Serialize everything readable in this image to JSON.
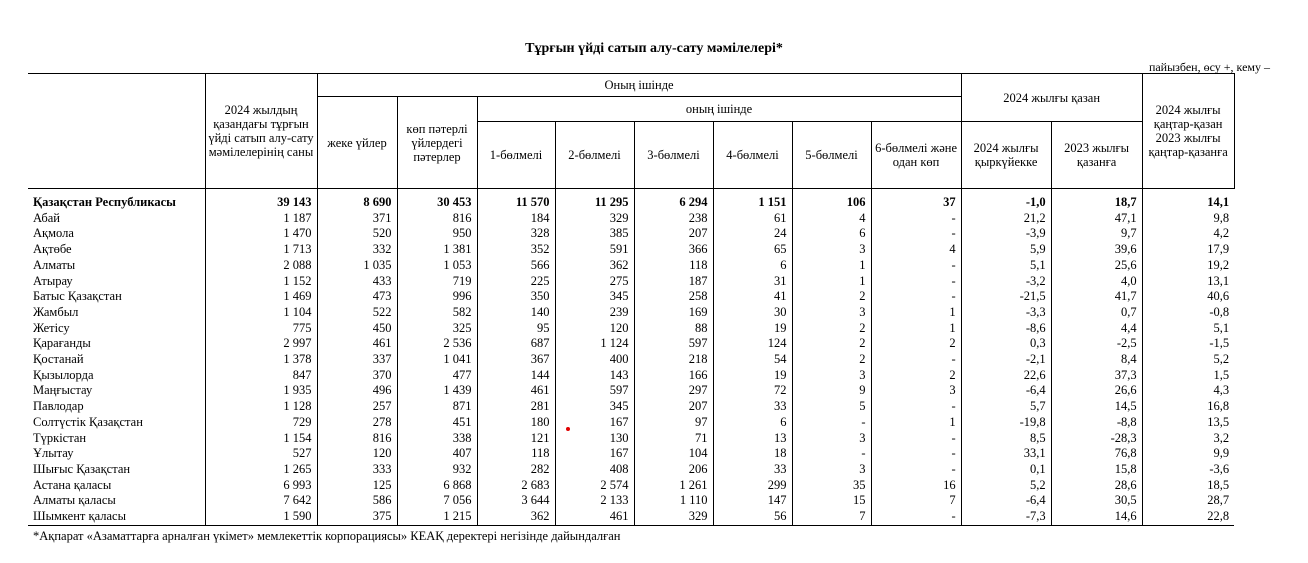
{
  "title": "Тұрғын үйді сатып алу-сату мәмілелері*",
  "units": "пайызбен, өсу +, кему –",
  "headers": {
    "col_total": "2024 жылдың қазандағы тұрғын үйді сатып алу-сату мәмілелерінің саны",
    "of_which": "Оның ішінде",
    "of_which_lower": "оның ішінде",
    "houses": "жеке үйлер",
    "apartments": "көп пәтерлі үйлердегі пәтерлер",
    "r1": "1-бөлмелі",
    "r2": "2-бөлмелі",
    "r3": "3-бөлмелі",
    "r4": "4-бөлмелі",
    "r5": "5-бөлмелі",
    "r6": "6-бөлмелі және одан көп",
    "oct_group": "2024 жылғы қазан",
    "vs_sep": "2024 жылғы қыркүйекке",
    "vs_oct": "2023 жылғы қазанға",
    "ytd": "2024 жылғы қаңтар-қазан 2023 жылғы қаңтар-қазанға"
  },
  "rows": [
    {
      "name": "Қазақстан Республикасы",
      "total": "39 143",
      "houses": "8 690",
      "apts": "30 453",
      "r1": "11 570",
      "r2": "11 295",
      "r3": "6 294",
      "r4": "1 151",
      "r5": "106",
      "r6": "37",
      "sep": "-1,0",
      "oct": "18,7",
      "ytd": "14,1"
    },
    {
      "name": "Абай",
      "total": "1 187",
      "houses": "371",
      "apts": "816",
      "r1": "184",
      "r2": "329",
      "r3": "238",
      "r4": "61",
      "r5": "4",
      "r6": "-",
      "sep": "21,2",
      "oct": "47,1",
      "ytd": "9,8"
    },
    {
      "name": "Ақмола",
      "total": "1 470",
      "houses": "520",
      "apts": "950",
      "r1": "328",
      "r2": "385",
      "r3": "207",
      "r4": "24",
      "r5": "6",
      "r6": "-",
      "sep": "-3,9",
      "oct": "9,7",
      "ytd": "4,2"
    },
    {
      "name": "Ақтөбе",
      "total": "1 713",
      "houses": "332",
      "apts": "1 381",
      "r1": "352",
      "r2": "591",
      "r3": "366",
      "r4": "65",
      "r5": "3",
      "r6": "4",
      "sep": "5,9",
      "oct": "39,6",
      "ytd": "17,9"
    },
    {
      "name": "Алматы",
      "total": "2 088",
      "houses": "1 035",
      "apts": "1 053",
      "r1": "566",
      "r2": "362",
      "r3": "118",
      "r4": "6",
      "r5": "1",
      "r6": "-",
      "sep": "5,1",
      "oct": "25,6",
      "ytd": "19,2"
    },
    {
      "name": "Атырау",
      "total": "1 152",
      "houses": "433",
      "apts": "719",
      "r1": "225",
      "r2": "275",
      "r3": "187",
      "r4": "31",
      "r5": "1",
      "r6": "-",
      "sep": "-3,2",
      "oct": "4,0",
      "ytd": "13,1"
    },
    {
      "name": "Батыс Қазақстан",
      "total": "1 469",
      "houses": "473",
      "apts": "996",
      "r1": "350",
      "r2": "345",
      "r3": "258",
      "r4": "41",
      "r5": "2",
      "r6": "-",
      "sep": "-21,5",
      "oct": "41,7",
      "ytd": "40,6"
    },
    {
      "name": "Жамбыл",
      "total": "1 104",
      "houses": "522",
      "apts": "582",
      "r1": "140",
      "r2": "239",
      "r3": "169",
      "r4": "30",
      "r5": "3",
      "r6": "1",
      "sep": "-3,3",
      "oct": "0,7",
      "ytd": "-0,8"
    },
    {
      "name": "Жетісу",
      "total": "775",
      "houses": "450",
      "apts": "325",
      "r1": "95",
      "r2": "120",
      "r3": "88",
      "r4": "19",
      "r5": "2",
      "r6": "1",
      "sep": "-8,6",
      "oct": "4,4",
      "ytd": "5,1"
    },
    {
      "name": "Қарағанды",
      "total": "2 997",
      "houses": "461",
      "apts": "2 536",
      "r1": "687",
      "r2": "1 124",
      "r3": "597",
      "r4": "124",
      "r5": "2",
      "r6": "2",
      "sep": "0,3",
      "oct": "-2,5",
      "ytd": "-1,5"
    },
    {
      "name": "Қостанай",
      "total": "1 378",
      "houses": "337",
      "apts": "1 041",
      "r1": "367",
      "r2": "400",
      "r3": "218",
      "r4": "54",
      "r5": "2",
      "r6": "-",
      "sep": "-2,1",
      "oct": "8,4",
      "ytd": "5,2"
    },
    {
      "name": "Қызылорда",
      "total": "847",
      "houses": "370",
      "apts": "477",
      "r1": "144",
      "r2": "143",
      "r3": "166",
      "r4": "19",
      "r5": "3",
      "r6": "2",
      "sep": "22,6",
      "oct": "37,3",
      "ytd": "1,5"
    },
    {
      "name": "Маңғыстау",
      "total": "1 935",
      "houses": "496",
      "apts": "1 439",
      "r1": "461",
      "r2": "597",
      "r3": "297",
      "r4": "72",
      "r5": "9",
      "r6": "3",
      "sep": "-6,4",
      "oct": "26,6",
      "ytd": "4,3"
    },
    {
      "name": "Павлодар",
      "total": "1 128",
      "houses": "257",
      "apts": "871",
      "r1": "281",
      "r2": "345",
      "r3": "207",
      "r4": "33",
      "r5": "5",
      "r6": "-",
      "sep": "5,7",
      "oct": "14,5",
      "ytd": "16,8"
    },
    {
      "name": "Солтүстік Қазақстан",
      "total": "729",
      "houses": "278",
      "apts": "451",
      "r1": "180",
      "r2": "167",
      "r3": "97",
      "r4": "6",
      "r5": "-",
      "r6": "1",
      "sep": "-19,8",
      "oct": "-8,8",
      "ytd": "13,5"
    },
    {
      "name": "Түркістан",
      "total": "1 154",
      "houses": "816",
      "apts": "338",
      "r1": "121",
      "r2": "130",
      "r3": "71",
      "r4": "13",
      "r5": "3",
      "r6": "-",
      "sep": "8,5",
      "oct": "-28,3",
      "ytd": "3,2"
    },
    {
      "name": "Ұлытау",
      "total": "527",
      "houses": "120",
      "apts": "407",
      "r1": "118",
      "r2": "167",
      "r3": "104",
      "r4": "18",
      "r5": "-",
      "r6": "-",
      "sep": "33,1",
      "oct": "76,8",
      "ytd": "9,9"
    },
    {
      "name": "Шығыс Қазақстан",
      "total": "1 265",
      "houses": "333",
      "apts": "932",
      "r1": "282",
      "r2": "408",
      "r3": "206",
      "r4": "33",
      "r5": "3",
      "r6": "-",
      "sep": "0,1",
      "oct": "15,8",
      "ytd": "-3,6"
    },
    {
      "name": "Астана қаласы",
      "total": "6 993",
      "houses": "125",
      "apts": "6 868",
      "r1": "2 683",
      "r2": "2 574",
      "r3": "1 261",
      "r4": "299",
      "r5": "35",
      "r6": "16",
      "sep": "5,2",
      "oct": "28,6",
      "ytd": "18,5"
    },
    {
      "name": "Алматы қаласы",
      "total": "7 642",
      "houses": "586",
      "apts": "7 056",
      "r1": "3 644",
      "r2": "2 133",
      "r3": "1 110",
      "r4": "147",
      "r5": "15",
      "r6": "7",
      "sep": "-6,4",
      "oct": "30,5",
      "ytd": "28,7"
    },
    {
      "name": "Шымкент қаласы",
      "total": "1 590",
      "houses": "375",
      "apts": "1 215",
      "r1": "362",
      "r2": "461",
      "r3": "329",
      "r4": "56",
      "r5": "7",
      "r6": "-",
      "sep": "-7,3",
      "oct": "14,6",
      "ytd": "22,8"
    }
  ],
  "footnote": "*Ақпарат «Азаматтарға арналған үкімет» мемлекеттік корпорациясы» КЕАҚ деректері негізінде дайындалған"
}
